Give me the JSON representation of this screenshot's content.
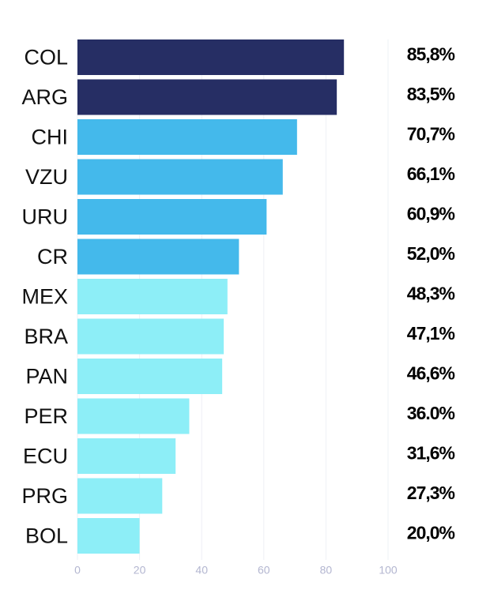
{
  "chart_data": {
    "type": "hbar",
    "categories": [
      "COL",
      "ARG",
      "CHI",
      "VZU",
      "URU",
      "CR",
      "MEX",
      "BRA",
      "PAN",
      "PER",
      "ECU",
      "PRG",
      "BOL"
    ],
    "values": [
      85.8,
      83.5,
      70.7,
      66.1,
      60.9,
      52.0,
      48.3,
      47.1,
      46.6,
      36.0,
      31.6,
      27.3,
      20.0
    ],
    "value_labels": [
      "85,8%",
      "83,5%",
      "70,7%",
      "66,1%",
      "60,9%",
      "52,0%",
      "48,3%",
      "47,1%",
      "46,6%",
      "36.0%",
      "31,6%",
      "27,3%",
      "20,0%"
    ],
    "colors": [
      "#262e64",
      "#262e64",
      "#44b9eb",
      "#44b9eb",
      "#44b9eb",
      "#44b9eb",
      "#8deef7",
      "#8deef7",
      "#8deef7",
      "#8deef7",
      "#8deef7",
      "#8deef7",
      "#8deef7"
    ],
    "xlim": [
      0,
      100
    ],
    "xticks": [
      0,
      20,
      40,
      60,
      80,
      100
    ],
    "grid": true
  }
}
